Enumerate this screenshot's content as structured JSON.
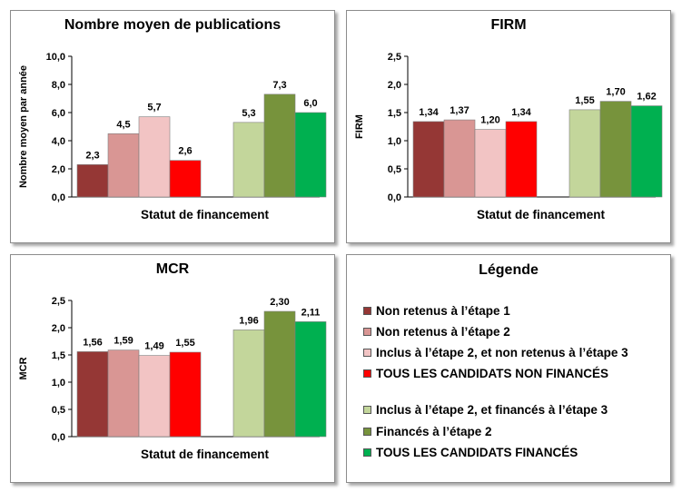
{
  "chart_data": [
    {
      "type": "bar",
      "title": "Nombre moyen  de publications",
      "xlabel": "Statut de financement",
      "ylabel": "Nombre moyen par année",
      "ylim": [
        0,
        10
      ],
      "yticks": [
        "0,0",
        "2,0",
        "4,0",
        "6,0",
        "8,0",
        "10,0"
      ],
      "values": [
        2.3,
        4.5,
        5.7,
        2.6,
        5.3,
        7.3,
        6.0
      ],
      "value_labels": [
        "2,3",
        "4,5",
        "5,7",
        "2,6",
        "5,3",
        "7,3",
        "6,0"
      ],
      "grid": false
    },
    {
      "type": "bar",
      "title": "FIRM",
      "xlabel": "Statut de financement",
      "ylabel": "FIRM",
      "ylim": [
        0,
        2.5
      ],
      "yticks": [
        "0,0",
        "0,5",
        "1,0",
        "1,5",
        "2,0",
        "2,5"
      ],
      "values": [
        1.34,
        1.37,
        1.2,
        1.34,
        1.55,
        1.7,
        1.62
      ],
      "value_labels": [
        "1,34",
        "1,37",
        "1,20",
        "1,34",
        "1,55",
        "1,70",
        "1,62"
      ],
      "grid": false
    },
    {
      "type": "bar",
      "title": "MCR",
      "xlabel": "Statut de financement",
      "ylabel": "MCR",
      "ylim": [
        0,
        2.5
      ],
      "yticks": [
        "0,0",
        "0,5",
        "1,0",
        "1,5",
        "2,0",
        "2,5"
      ],
      "values": [
        1.56,
        1.59,
        1.49,
        1.55,
        1.96,
        2.3,
        2.11
      ],
      "value_labels": [
        "1,56",
        "1,59",
        "1,49",
        "1,55",
        "1,96",
        "2,30",
        "2,11"
      ],
      "grid": false
    }
  ],
  "legend": {
    "title": "Légende",
    "items": [
      {
        "label": "Non retenus à l’étape 1",
        "color": "#953735"
      },
      {
        "label": "Non retenus à l’étape 2",
        "color": "#d99694"
      },
      {
        "label": "Inclus à l’étape 2, et non retenus à l’étape 3",
        "color": "#f2c4c4"
      },
      {
        "label": "TOUS LES CANDIDATS NON FINANCÉS",
        "color": "#ff0000"
      },
      {
        "label": "Inclus à l’étape 2, et financés à l’étape 3",
        "color": "#c3d69b"
      },
      {
        "label": "Financés à l’étape 2",
        "color": "#77933c"
      },
      {
        "label": "TOUS LES CANDIDATS FINANCÉS",
        "color": "#00b050"
      }
    ]
  }
}
